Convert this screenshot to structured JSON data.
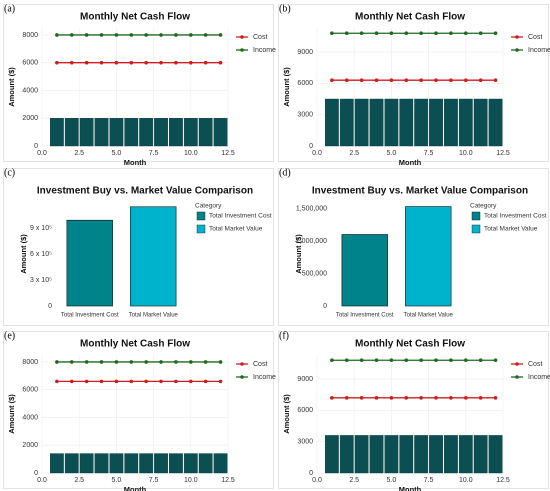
{
  "chart_data": [
    {
      "panel": "(a)",
      "type": "line",
      "title": "Monthly Net Cash Flow",
      "xlabel": "Month",
      "ylabel": "Amount ($)",
      "x": [
        1,
        2,
        3,
        4,
        5,
        6,
        7,
        8,
        9,
        10,
        11,
        12
      ],
      "xlim": [
        0,
        12.5
      ],
      "xticks": [
        {
          "value": 0,
          "label": "0.0"
        },
        2.5,
        {
          "value": 5,
          "label": "5.0"
        },
        7.5,
        {
          "value": 10,
          "label": "10.0"
        },
        12.5
      ],
      "ylim": [
        0,
        8500
      ],
      "yticks": [
        0,
        2000,
        4000,
        6000,
        8000
      ],
      "grid": true,
      "bars": {
        "color": "#0b4f52",
        "values": [
          2000,
          2000,
          2000,
          2000,
          2000,
          2000,
          2000,
          2000,
          2000,
          2000,
          2000,
          2000
        ]
      },
      "series": [
        {
          "name": "Cost",
          "color": "#cc1f1f",
          "values": [
            6000,
            6000,
            6000,
            6000,
            6000,
            6000,
            6000,
            6000,
            6000,
            6000,
            6000,
            6000
          ]
        },
        {
          "name": "Income",
          "color": "#1e6b1e",
          "values": [
            8000,
            8000,
            8000,
            8000,
            8000,
            8000,
            8000,
            8000,
            8000,
            8000,
            8000,
            8000
          ]
        }
      ]
    },
    {
      "panel": "(b)",
      "type": "line",
      "title": "Monthly Net Cash Flow",
      "xlabel": "Month",
      "ylabel": "Amount ($)",
      "x": [
        1,
        2,
        3,
        4,
        5,
        6,
        7,
        8,
        9,
        10,
        11,
        12
      ],
      "xlim": [
        0,
        12.5
      ],
      "xticks": [
        {
          "value": 0,
          "label": "0.0"
        },
        2.5,
        {
          "value": 5,
          "label": "5.0"
        },
        7.5,
        {
          "value": 10,
          "label": "10.0"
        },
        12.5
      ],
      "ylim": [
        0,
        11300
      ],
      "yticks": [
        0,
        3000,
        6000,
        9000
      ],
      "grid": true,
      "bars": {
        "color": "#0b4f52",
        "values": [
          4500,
          4500,
          4500,
          4500,
          4500,
          4500,
          4500,
          4500,
          4500,
          4500,
          4500,
          4500
        ]
      },
      "series": [
        {
          "name": "Cost",
          "color": "#cc1f1f",
          "values": [
            6300,
            6300,
            6300,
            6300,
            6300,
            6300,
            6300,
            6300,
            6300,
            6300,
            6300,
            6300
          ]
        },
        {
          "name": "Income",
          "color": "#1e6b1e",
          "values": [
            10800,
            10800,
            10800,
            10800,
            10800,
            10800,
            10800,
            10800,
            10800,
            10800,
            10800,
            10800
          ]
        }
      ]
    },
    {
      "panel": "(c)",
      "type": "bar",
      "title": "Investment Buy vs. Market Value Comparison",
      "ylabel": "Amount ($)",
      "legend_title": "Category",
      "categories": [
        "Total Investment Cost",
        "Total Market Value"
      ],
      "values": [
        990000,
        1145000
      ],
      "colors": [
        "#00838a",
        "#00b3cc"
      ],
      "ylim": [
        0,
        1200000
      ],
      "yticks": [
        0,
        {
          "value": 300000,
          "label": "3 x 10⁵"
        },
        {
          "value": 600000,
          "label": "6 x 10⁵"
        },
        {
          "value": 900000,
          "label": "9 x 10⁵"
        }
      ],
      "grid": false
    },
    {
      "panel": "(d)",
      "type": "bar",
      "title": "Investment Buy vs. Market Value Comparison",
      "ylabel": "Amount ($)",
      "legend_title": "Category",
      "categories": [
        "Total Investment Cost",
        "Total Market Value"
      ],
      "values": [
        1100000,
        1530000
      ],
      "colors": [
        "#00838a",
        "#00b3cc"
      ],
      "ylim": [
        0,
        1600000
      ],
      "yticks": [
        0,
        {
          "value": 500000,
          "label": "500,000"
        },
        {
          "value": 1000000,
          "label": "1,000,000"
        },
        {
          "value": 1500000,
          "label": "1,500,000"
        }
      ],
      "grid": false
    },
    {
      "panel": "(e)",
      "type": "line",
      "title": "Monthly Net Cash Flow",
      "xlabel": "Month",
      "ylabel": "Amount ($)",
      "x": [
        1,
        2,
        3,
        4,
        5,
        6,
        7,
        8,
        9,
        10,
        11,
        12
      ],
      "xlim": [
        0,
        12.5
      ],
      "xticks": [
        {
          "value": 0,
          "label": "0.0"
        },
        2.5,
        {
          "value": 5,
          "label": "5.0"
        },
        7.5,
        {
          "value": 10,
          "label": "10.0"
        },
        12.5
      ],
      "ylim": [
        0,
        8500
      ],
      "yticks": [
        0,
        2000,
        4000,
        6000,
        8000
      ],
      "grid": true,
      "bars": {
        "color": "#0b4f52",
        "values": [
          1400,
          1400,
          1400,
          1400,
          1400,
          1400,
          1400,
          1400,
          1400,
          1400,
          1400,
          1400
        ]
      },
      "series": [
        {
          "name": "Cost",
          "color": "#cc1f1f",
          "values": [
            6600,
            6600,
            6600,
            6600,
            6600,
            6600,
            6600,
            6600,
            6600,
            6600,
            6600,
            6600
          ]
        },
        {
          "name": "Income",
          "color": "#1e6b1e",
          "values": [
            8000,
            8000,
            8000,
            8000,
            8000,
            8000,
            8000,
            8000,
            8000,
            8000,
            8000,
            8000
          ]
        }
      ]
    },
    {
      "panel": "(f)",
      "type": "line",
      "title": "Monthly Net Cash Flow",
      "xlabel": "Month",
      "ylabel": "Amount ($)",
      "x": [
        1,
        2,
        3,
        4,
        5,
        6,
        7,
        8,
        9,
        10,
        11,
        12
      ],
      "xlim": [
        0,
        12.5
      ],
      "xticks": [
        {
          "value": 0,
          "label": "0.0"
        },
        2.5,
        {
          "value": 5,
          "label": "5.0"
        },
        7.5,
        {
          "value": 10,
          "label": "10.0"
        },
        12.5
      ],
      "ylim": [
        0,
        11300
      ],
      "yticks": [
        0,
        3000,
        6000,
        9000
      ],
      "grid": true,
      "bars": {
        "color": "#0b4f52",
        "values": [
          3600,
          3600,
          3600,
          3600,
          3600,
          3600,
          3600,
          3600,
          3600,
          3600,
          3600,
          3600
        ]
      },
      "series": [
        {
          "name": "Cost",
          "color": "#cc1f1f",
          "values": [
            7200,
            7200,
            7200,
            7200,
            7200,
            7200,
            7200,
            7200,
            7200,
            7200,
            7200,
            7200
          ]
        },
        {
          "name": "Income",
          "color": "#1e6b1e",
          "values": [
            10800,
            10800,
            10800,
            10800,
            10800,
            10800,
            10800,
            10800,
            10800,
            10800,
            10800,
            10800
          ]
        }
      ]
    }
  ]
}
